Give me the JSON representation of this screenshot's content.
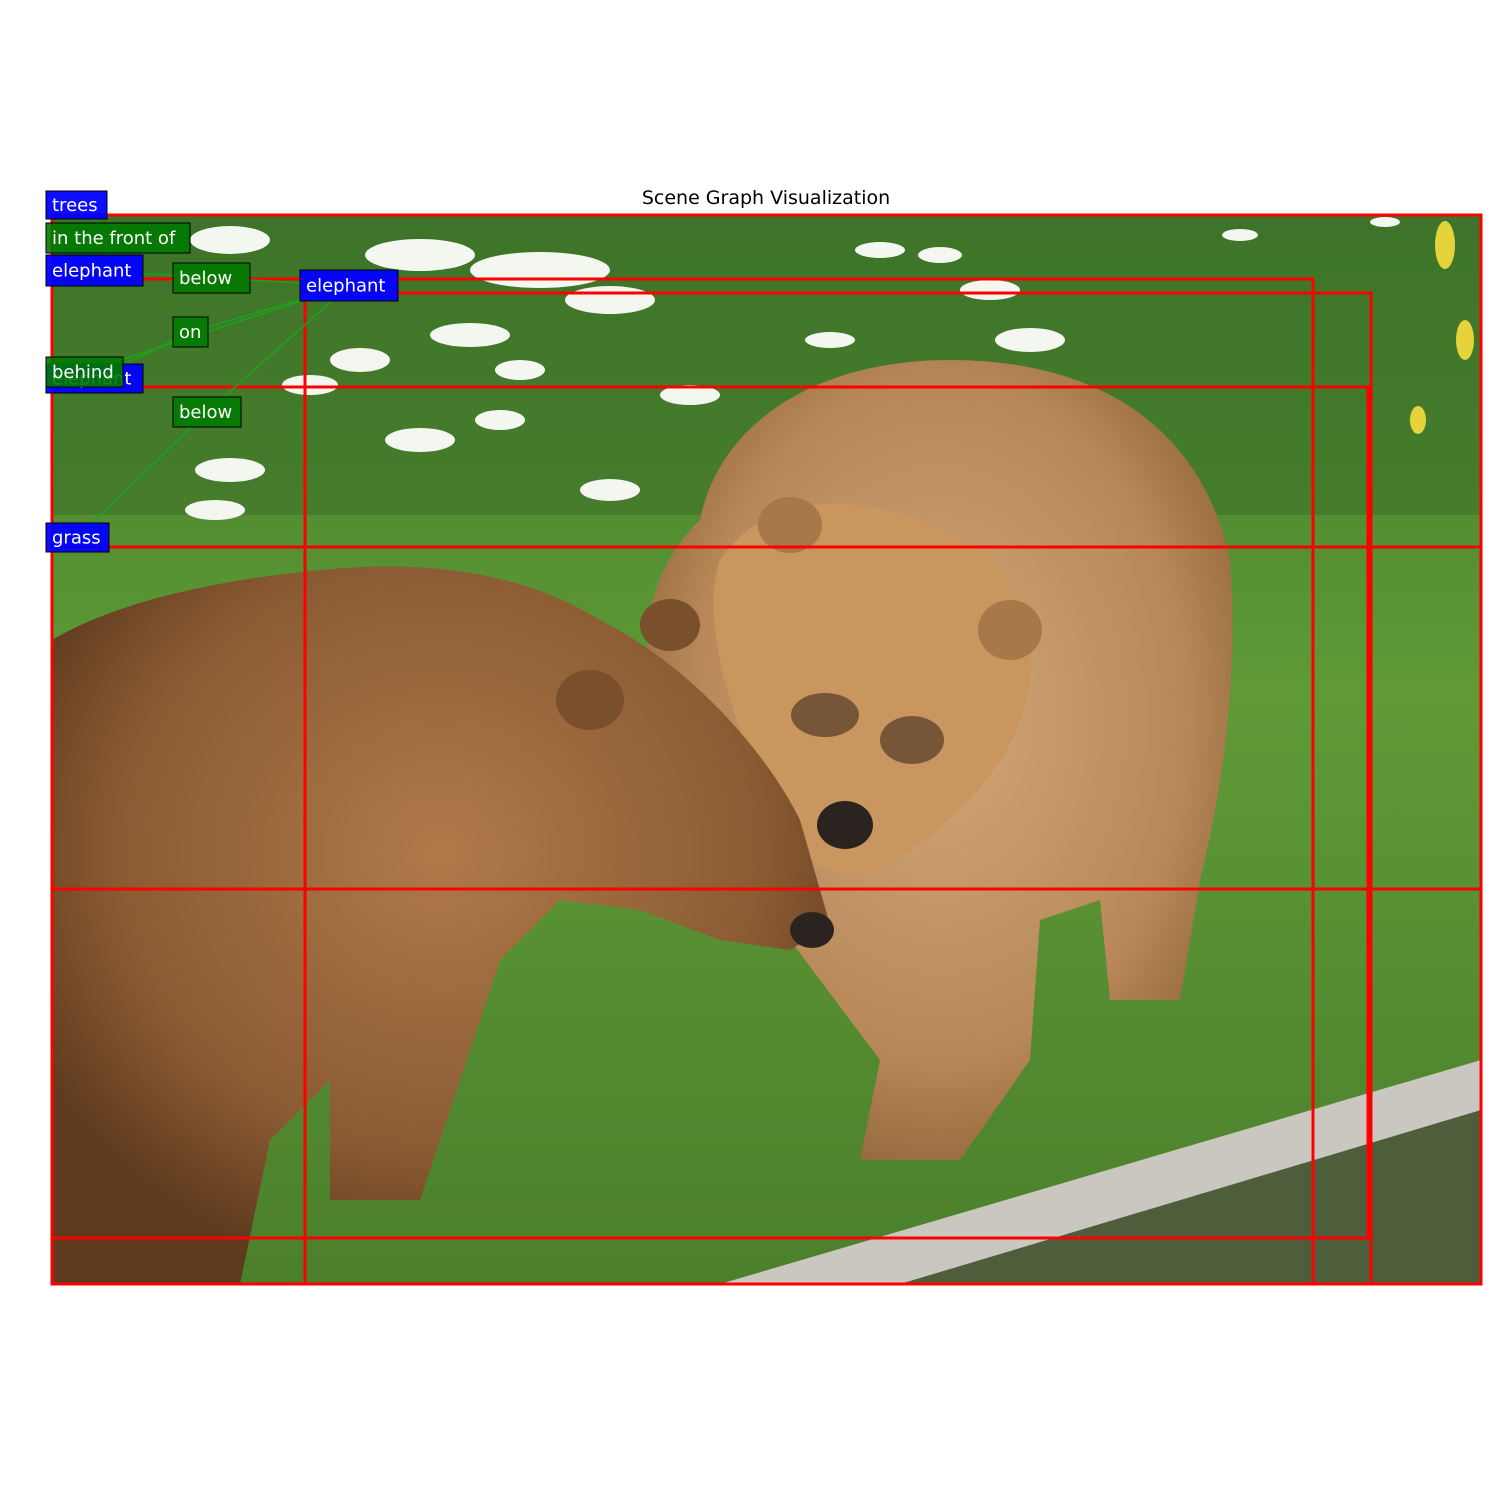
{
  "title": "Scene Graph Visualization",
  "colors": {
    "box": "#ff0000",
    "object_label": "#0000ff",
    "relation_label": "#007a00",
    "edge": "#1aa31a"
  },
  "photo": {
    "subject": "two brown bears on grass in front of flowering plants and a water channel"
  },
  "objects": [
    {
      "id": "trees",
      "label": "trees"
    },
    {
      "id": "elephant-left",
      "label": "elephant"
    },
    {
      "id": "elephant-right",
      "label": "elephant"
    },
    {
      "id": "elephant-hidden",
      "label": "elephant"
    },
    {
      "id": "grass",
      "label": "grass"
    }
  ],
  "relations": [
    {
      "id": "rel-in-front-of",
      "label": "in the front of",
      "subject": "elephant-left",
      "object": "trees"
    },
    {
      "id": "rel-below-1",
      "label": "below",
      "subject": "elephant-left",
      "object": "elephant-right"
    },
    {
      "id": "rel-below-2",
      "label": "below",
      "subject": "grass",
      "object": "elephant-right"
    },
    {
      "id": "rel-on",
      "label": "on",
      "subject": "elephant-hidden",
      "object": "elephant-right"
    },
    {
      "id": "rel-behind",
      "label": "behind",
      "subject": "elephant-hidden",
      "object": "elephant-right"
    }
  ]
}
